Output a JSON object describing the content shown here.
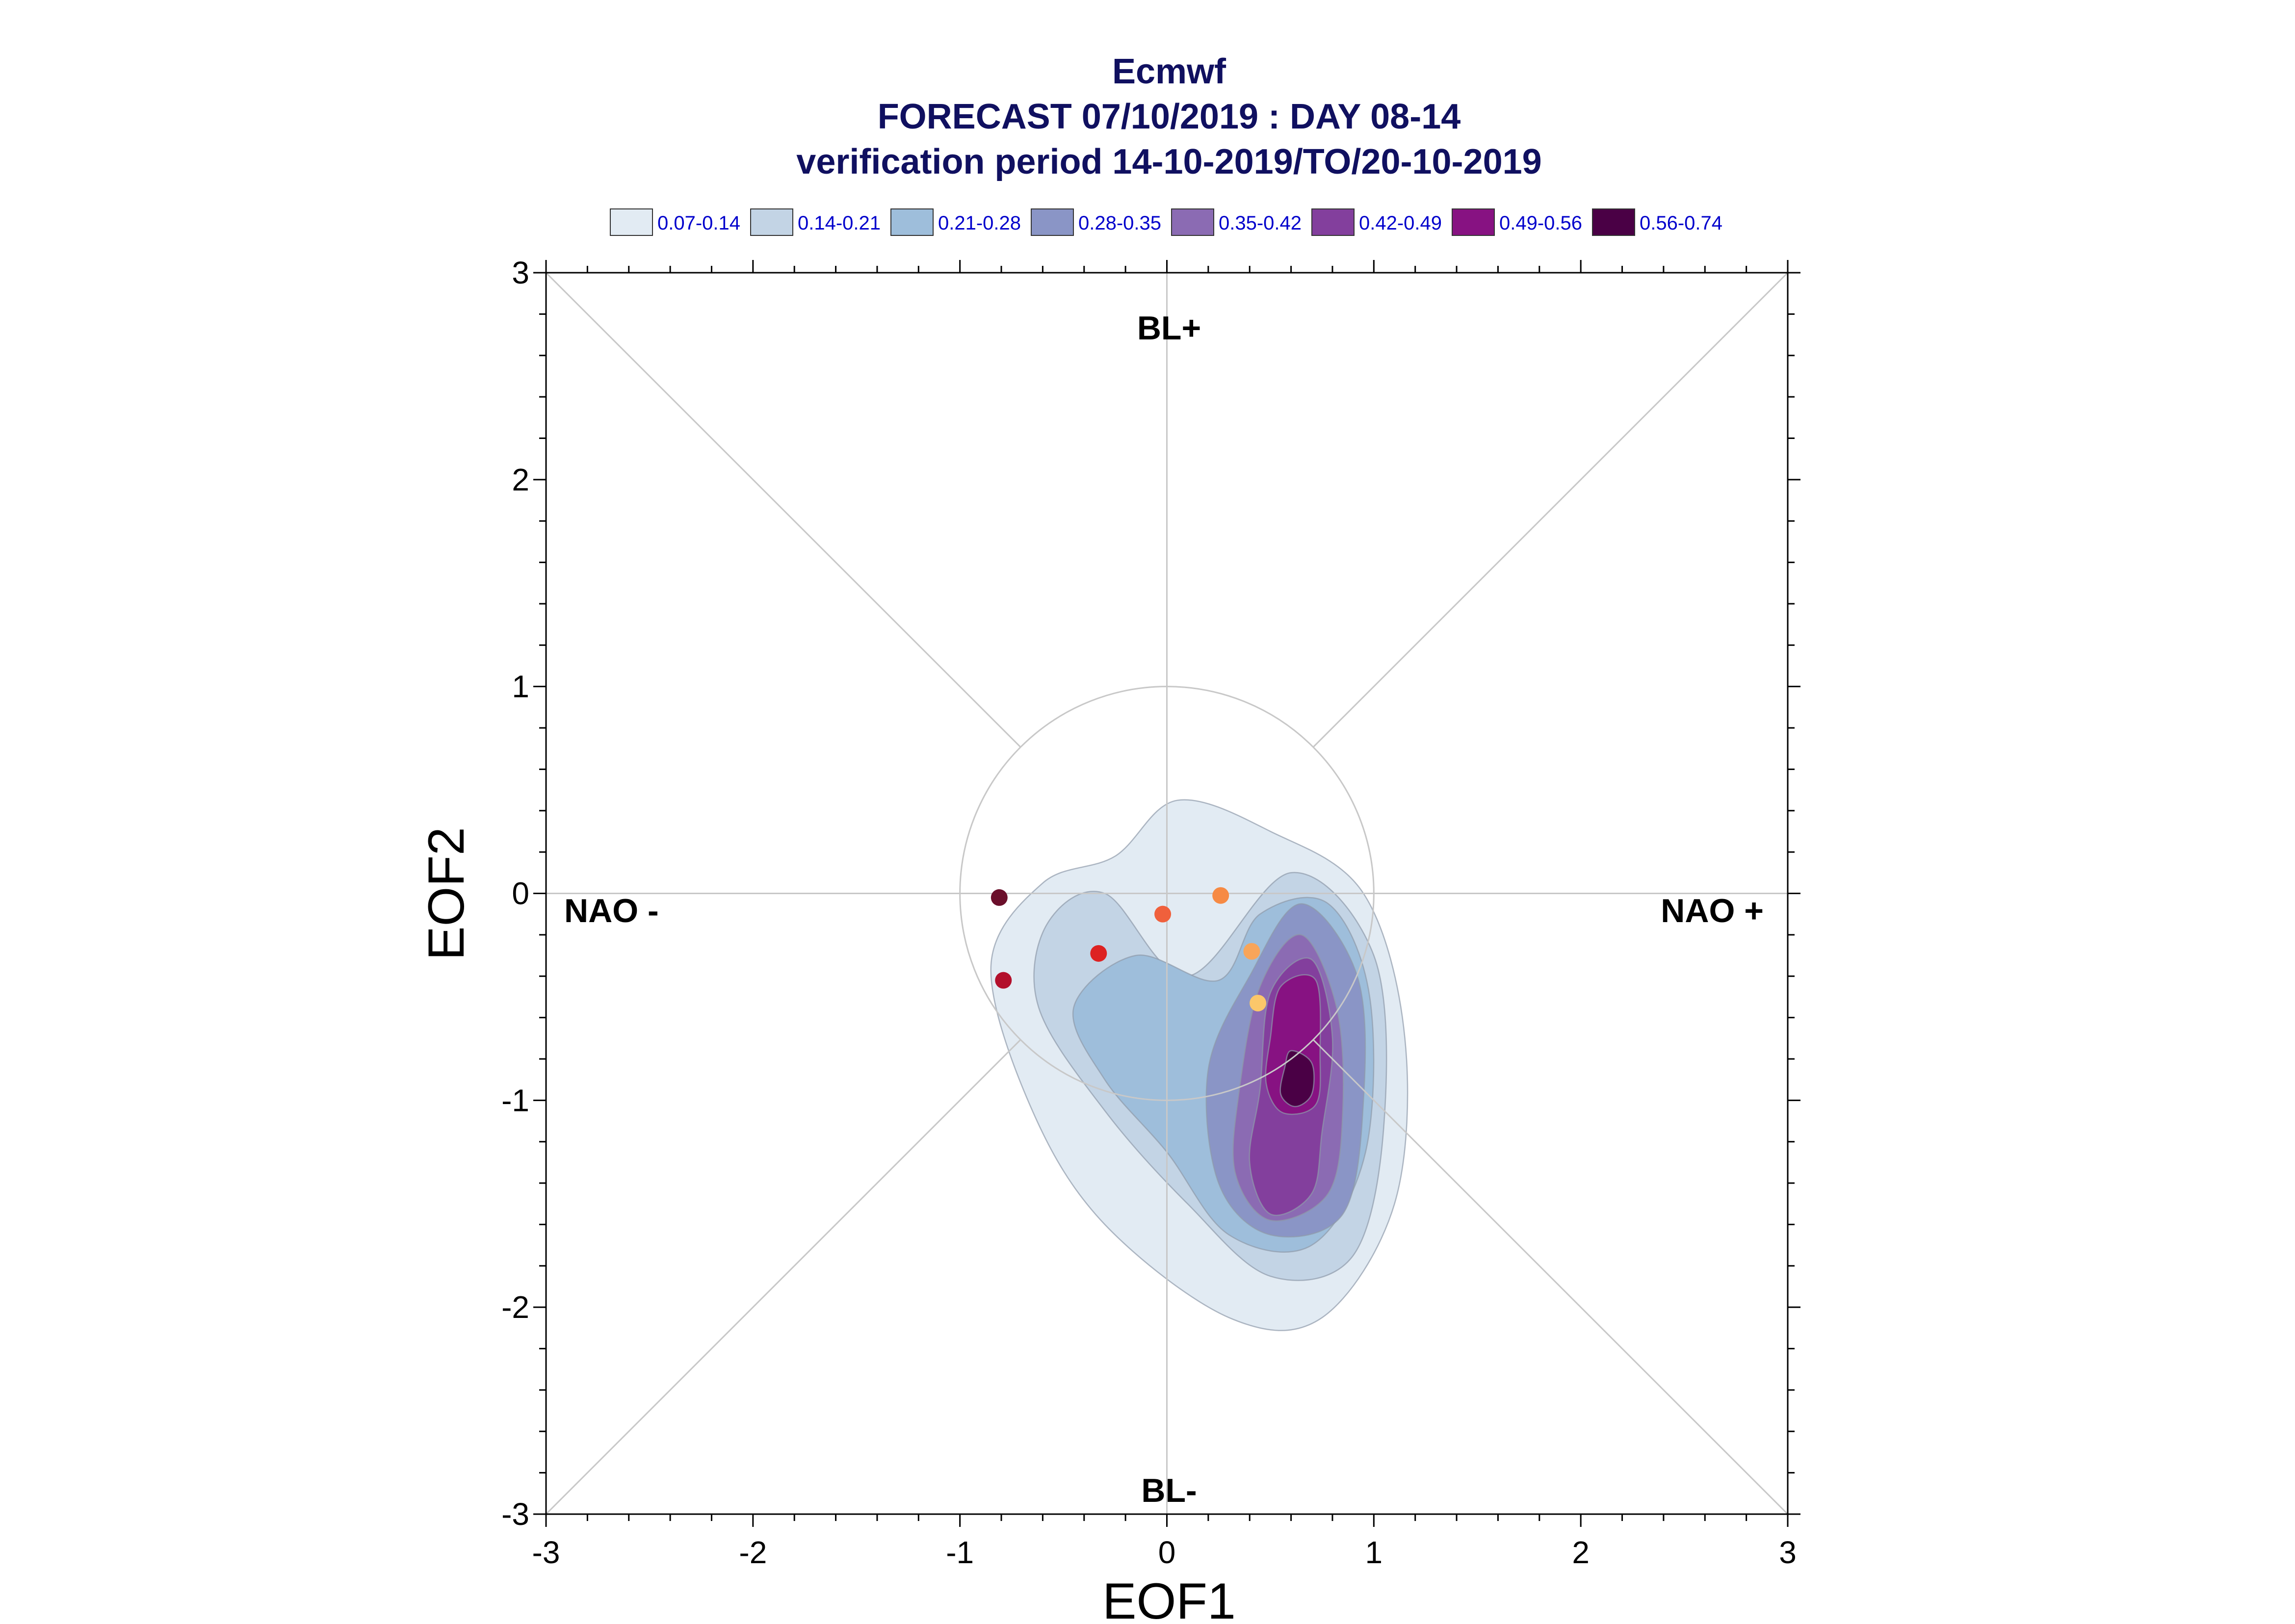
{
  "chart_data": {
    "type": "scatter",
    "title_lines": [
      "Ecmwf",
      "FORECAST 07/10/2019 : DAY 08-14",
      "verification period 14-10-2019/TO/20-10-2019"
    ],
    "xlabel": "EOF1",
    "ylabel": "EOF2",
    "xlim": [
      -3,
      3
    ],
    "ylim": [
      -3,
      3
    ],
    "x_ticks": [
      "-3",
      "-2",
      "-1",
      "0",
      "1",
      "2",
      "3"
    ],
    "y_ticks": [
      "-3",
      "-2",
      "-1",
      "0",
      "1",
      "2",
      "3"
    ],
    "regime_labels": {
      "top": "BL+",
      "bottom": "BL-",
      "left": "NAO -",
      "right": "NAO +"
    },
    "reference_circle_radius": 1,
    "density_legend": [
      {
        "label": "0.07-0.14",
        "color": "#e2ebf3"
      },
      {
        "label": "0.14-0.21",
        "color": "#c3d4e5"
      },
      {
        "label": "0.21-0.28",
        "color": "#9ebedb"
      },
      {
        "label": "0.28-0.35",
        "color": "#8a95c6"
      },
      {
        "label": "0.35-0.42",
        "color": "#8b6bb3"
      },
      {
        "label": "0.42-0.49",
        "color": "#833f9d"
      },
      {
        "label": "0.49-0.56",
        "color": "#871282"
      },
      {
        "label": "0.56-0.74",
        "color": "#4a0045"
      }
    ],
    "density_blobs": [
      {
        "level": 0,
        "points": [
          [
            -0.25,
            0.18
          ],
          [
            0.05,
            0.45
          ],
          [
            0.5,
            0.3
          ],
          [
            0.95,
            0.0
          ],
          [
            1.15,
            -0.7
          ],
          [
            1.1,
            -1.5
          ],
          [
            0.75,
            -2.05
          ],
          [
            0.3,
            -2.05
          ],
          [
            -0.3,
            -1.6
          ],
          [
            -0.65,
            -1.05
          ],
          [
            -0.85,
            -0.35
          ],
          [
            -0.6,
            0.05
          ]
        ]
      },
      {
        "level": 1,
        "points": [
          [
            -0.3,
            0.0
          ],
          [
            0.1,
            -0.4
          ],
          [
            0.6,
            0.1
          ],
          [
            1.0,
            -0.3
          ],
          [
            1.05,
            -1.1
          ],
          [
            0.9,
            -1.75
          ],
          [
            0.5,
            -1.85
          ],
          [
            0.1,
            -1.5
          ],
          [
            -0.3,
            -1.05
          ],
          [
            -0.62,
            -0.55
          ],
          [
            -0.58,
            -0.15
          ]
        ]
      },
      {
        "level": 2,
        "points": [
          [
            -0.15,
            -0.3
          ],
          [
            0.25,
            -0.42
          ],
          [
            0.45,
            -0.1
          ],
          [
            0.78,
            -0.05
          ],
          [
            0.98,
            -0.5
          ],
          [
            0.96,
            -1.25
          ],
          [
            0.7,
            -1.7
          ],
          [
            0.3,
            -1.65
          ],
          [
            0.0,
            -1.25
          ],
          [
            -0.3,
            -0.9
          ],
          [
            -0.45,
            -0.55
          ]
        ]
      },
      {
        "level": 3,
        "points": [
          [
            0.4,
            -0.4
          ],
          [
            0.65,
            -0.05
          ],
          [
            0.92,
            -0.4
          ],
          [
            0.95,
            -1.0
          ],
          [
            0.85,
            -1.55
          ],
          [
            0.5,
            -1.65
          ],
          [
            0.25,
            -1.4
          ],
          [
            0.2,
            -0.85
          ]
        ]
      },
      {
        "level": 4,
        "points": [
          [
            0.45,
            -0.45
          ],
          [
            0.65,
            -0.2
          ],
          [
            0.82,
            -0.55
          ],
          [
            0.85,
            -1.05
          ],
          [
            0.78,
            -1.45
          ],
          [
            0.5,
            -1.58
          ],
          [
            0.33,
            -1.35
          ],
          [
            0.35,
            -0.95
          ]
        ]
      },
      {
        "level": 5,
        "points": [
          [
            0.5,
            -0.48
          ],
          [
            0.7,
            -0.32
          ],
          [
            0.8,
            -0.7
          ],
          [
            0.75,
            -1.15
          ],
          [
            0.7,
            -1.45
          ],
          [
            0.5,
            -1.55
          ],
          [
            0.4,
            -1.3
          ],
          [
            0.45,
            -0.95
          ]
        ]
      },
      {
        "level": 6,
        "points": [
          [
            0.55,
            -0.45
          ],
          [
            0.72,
            -0.42
          ],
          [
            0.74,
            -0.78
          ],
          [
            0.72,
            -1.02
          ],
          [
            0.56,
            -1.06
          ],
          [
            0.48,
            -0.92
          ],
          [
            0.5,
            -0.7
          ]
        ]
      },
      {
        "level": 7,
        "points": [
          [
            0.6,
            -0.76
          ],
          [
            0.7,
            -0.82
          ],
          [
            0.7,
            -0.97
          ],
          [
            0.62,
            -1.03
          ],
          [
            0.55,
            -0.97
          ],
          [
            0.57,
            -0.84
          ]
        ]
      }
    ],
    "points": [
      {
        "x": -0.81,
        "y": -0.02,
        "color": "#6b0f2b"
      },
      {
        "x": -0.79,
        "y": -0.42,
        "color": "#b3102c"
      },
      {
        "x": -0.33,
        "y": -0.29,
        "color": "#dd2222"
      },
      {
        "x": -0.02,
        "y": -0.1,
        "color": "#f0603c"
      },
      {
        "x": 0.26,
        "y": -0.01,
        "color": "#f68a44"
      },
      {
        "x": 0.41,
        "y": -0.28,
        "color": "#f8a55a"
      },
      {
        "x": 0.44,
        "y": -0.53,
        "color": "#fbc76a"
      }
    ]
  }
}
